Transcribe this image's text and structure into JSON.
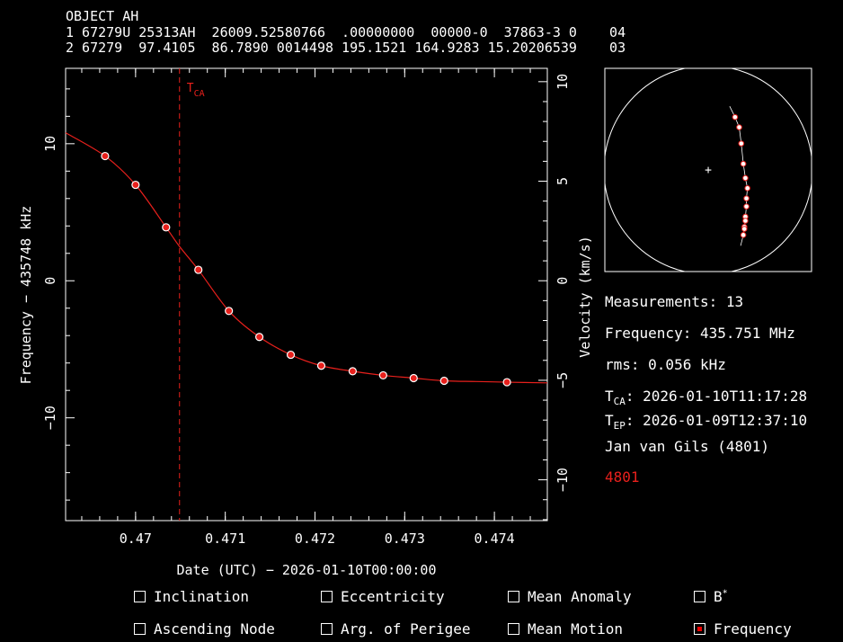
{
  "header": {
    "object": "OBJECT AH",
    "tle_line1": "1 67279U 25313AH  26009.52580766  .00000000  00000-0  37863-3 0    04",
    "tle_line2": "2 67279  97.4105  86.7890 0014498 195.1521 164.9283 15.20206539    03"
  },
  "colors": {
    "plot": "#e8201c",
    "axes": "#ffffff",
    "background": "#000000"
  },
  "chart_data": {
    "type": "scatter",
    "xlabel": "Date (UTC) − 2026-01-10T00:00:00",
    "ylabel_left": "Frequency − 435748 kHz",
    "ylabel_right": "Velocity (km/s)",
    "xlim": [
      0.46922,
      0.47459
    ],
    "ylim_left": [
      -17.5,
      15.5
    ],
    "ylim_right": [
      -12.05,
      10.67
    ],
    "x_ticks": [
      0.47,
      0.471,
      0.472,
      0.473,
      0.474
    ],
    "x_tick_labels": [
      "0.47",
      "0.471",
      "0.472",
      "0.473",
      "0.474"
    ],
    "y_ticks_left": [
      10,
      0,
      -10
    ],
    "y_tick_labels_left": [
      "10",
      "0",
      "−10"
    ],
    "y_ticks_right": [
      10,
      5,
      0,
      -5,
      -10
    ],
    "y_tick_labels_right": [
      "10",
      "5",
      "0",
      "−5",
      "−10"
    ],
    "tca_x": 0.47049,
    "tca_label": "T",
    "tca_label_sub": "CA",
    "series": [
      {
        "x": [
          0.46966,
          0.47,
          0.47034,
          0.4707,
          0.47104,
          0.47138,
          0.47173,
          0.47207,
          0.47242,
          0.47276,
          0.4731,
          0.47344,
          0.47414
        ],
        "y": [
          9.1,
          7.0,
          3.9,
          0.8,
          -2.2,
          -4.1,
          -5.4,
          -6.2,
          -6.6,
          -6.9,
          -7.1,
          -7.3,
          -7.4
        ]
      }
    ],
    "fit_curve": {
      "x": [
        0.46922,
        0.46966,
        0.47,
        0.47034,
        0.47049,
        0.4707,
        0.47104,
        0.47138,
        0.47173,
        0.47207,
        0.47242,
        0.47276,
        0.4731,
        0.47344,
        0.4738,
        0.47414,
        0.47459
      ],
      "y": [
        10.8,
        9.1,
        7.0,
        3.9,
        2.5,
        0.8,
        -2.2,
        -4.1,
        -5.4,
        -6.2,
        -6.6,
        -6.9,
        -7.1,
        -7.3,
        -7.35,
        -7.4,
        -7.45
      ]
    }
  },
  "ground_track": {
    "points": [
      [
        0.63,
        0.24
      ],
      [
        0.65,
        0.29
      ],
      [
        0.66,
        0.37
      ],
      [
        0.67,
        0.47
      ],
      [
        0.68,
        0.54
      ],
      [
        0.69,
        0.59
      ],
      [
        0.685,
        0.64
      ],
      [
        0.685,
        0.68
      ],
      [
        0.68,
        0.73
      ],
      [
        0.68,
        0.75
      ],
      [
        0.675,
        0.78
      ],
      [
        0.675,
        0.79
      ],
      [
        0.67,
        0.82
      ]
    ]
  },
  "info": {
    "measurements": "Measurements: 13",
    "frequency": "Frequency: 435.751 MHz",
    "rms": "rms: 0.056 kHz",
    "tca_prefix": "T",
    "tca_sub": "CA",
    "tca_value": ": 2026-01-10T11:17:28",
    "tep_prefix": "T",
    "tep_sub": "EP",
    "tep_value": ": 2026-01-09T12:37:10",
    "observer": "Jan van Gils (4801)",
    "site_id": "4801"
  },
  "checkboxes": [
    {
      "label": "Inclination",
      "checked": false
    },
    {
      "label": "Eccentricity",
      "checked": false
    },
    {
      "label": "Mean Anomaly",
      "checked": false
    },
    {
      "label": "B",
      "sup": "*",
      "checked": false
    },
    {
      "label": "Ascending Node",
      "checked": false
    },
    {
      "label": "Arg. of Perigee",
      "checked": false
    },
    {
      "label": "Mean Motion",
      "checked": false
    },
    {
      "label": "Frequency",
      "checked": true
    }
  ]
}
